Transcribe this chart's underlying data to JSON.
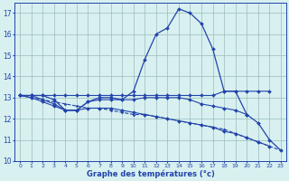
{
  "hours": [
    0,
    1,
    2,
    3,
    4,
    5,
    6,
    7,
    8,
    9,
    10,
    11,
    12,
    13,
    14,
    15,
    16,
    17,
    18,
    19,
    20,
    21,
    22,
    23
  ],
  "curve_main": [
    13.1,
    13.1,
    13.1,
    12.9,
    12.4,
    12.4,
    12.8,
    13.0,
    13.0,
    12.9,
    13.3,
    14.8,
    16.0,
    16.3,
    17.2,
    17.0,
    16.5,
    15.3,
    13.3,
    13.3,
    12.2,
    11.8,
    11.0,
    10.5
  ],
  "curve_flat_top": [
    13.1,
    13.1,
    13.1,
    13.1,
    13.1,
    13.1,
    13.1,
    13.1,
    13.1,
    13.1,
    13.1,
    13.1,
    13.1,
    13.1,
    13.1,
    13.1,
    13.1,
    13.1,
    13.3,
    13.3,
    13.3,
    13.3,
    13.3,
    null
  ],
  "curve_mid": [
    13.1,
    13.1,
    12.9,
    12.7,
    12.4,
    12.4,
    12.8,
    12.9,
    12.9,
    12.9,
    12.9,
    13.0,
    13.0,
    13.0,
    13.0,
    12.9,
    12.7,
    12.6,
    12.5,
    12.4,
    12.2,
    null,
    null,
    null
  ],
  "curve_low": [
    13.1,
    13.0,
    12.8,
    12.6,
    12.4,
    12.4,
    12.5,
    12.5,
    12.5,
    12.4,
    12.3,
    12.2,
    12.1,
    12.0,
    11.9,
    11.8,
    11.7,
    11.6,
    11.4,
    11.3,
    11.1,
    10.9,
    10.7,
    null
  ],
  "curve_decline": [
    13.1,
    13.0,
    12.9,
    12.8,
    12.7,
    12.6,
    12.5,
    12.5,
    12.4,
    12.3,
    12.2,
    12.2,
    12.1,
    12.0,
    11.9,
    11.8,
    11.7,
    11.6,
    11.5,
    11.3,
    11.1,
    10.9,
    10.7,
    10.5
  ],
  "line_color": "#2244aa",
  "bg_color": "#d8f0f0",
  "grid_color": "#99bbbb",
  "xlabel": "Graphe des températures (°c)",
  "ylim": [
    10,
    17.5
  ],
  "xlim": [
    0,
    23
  ]
}
